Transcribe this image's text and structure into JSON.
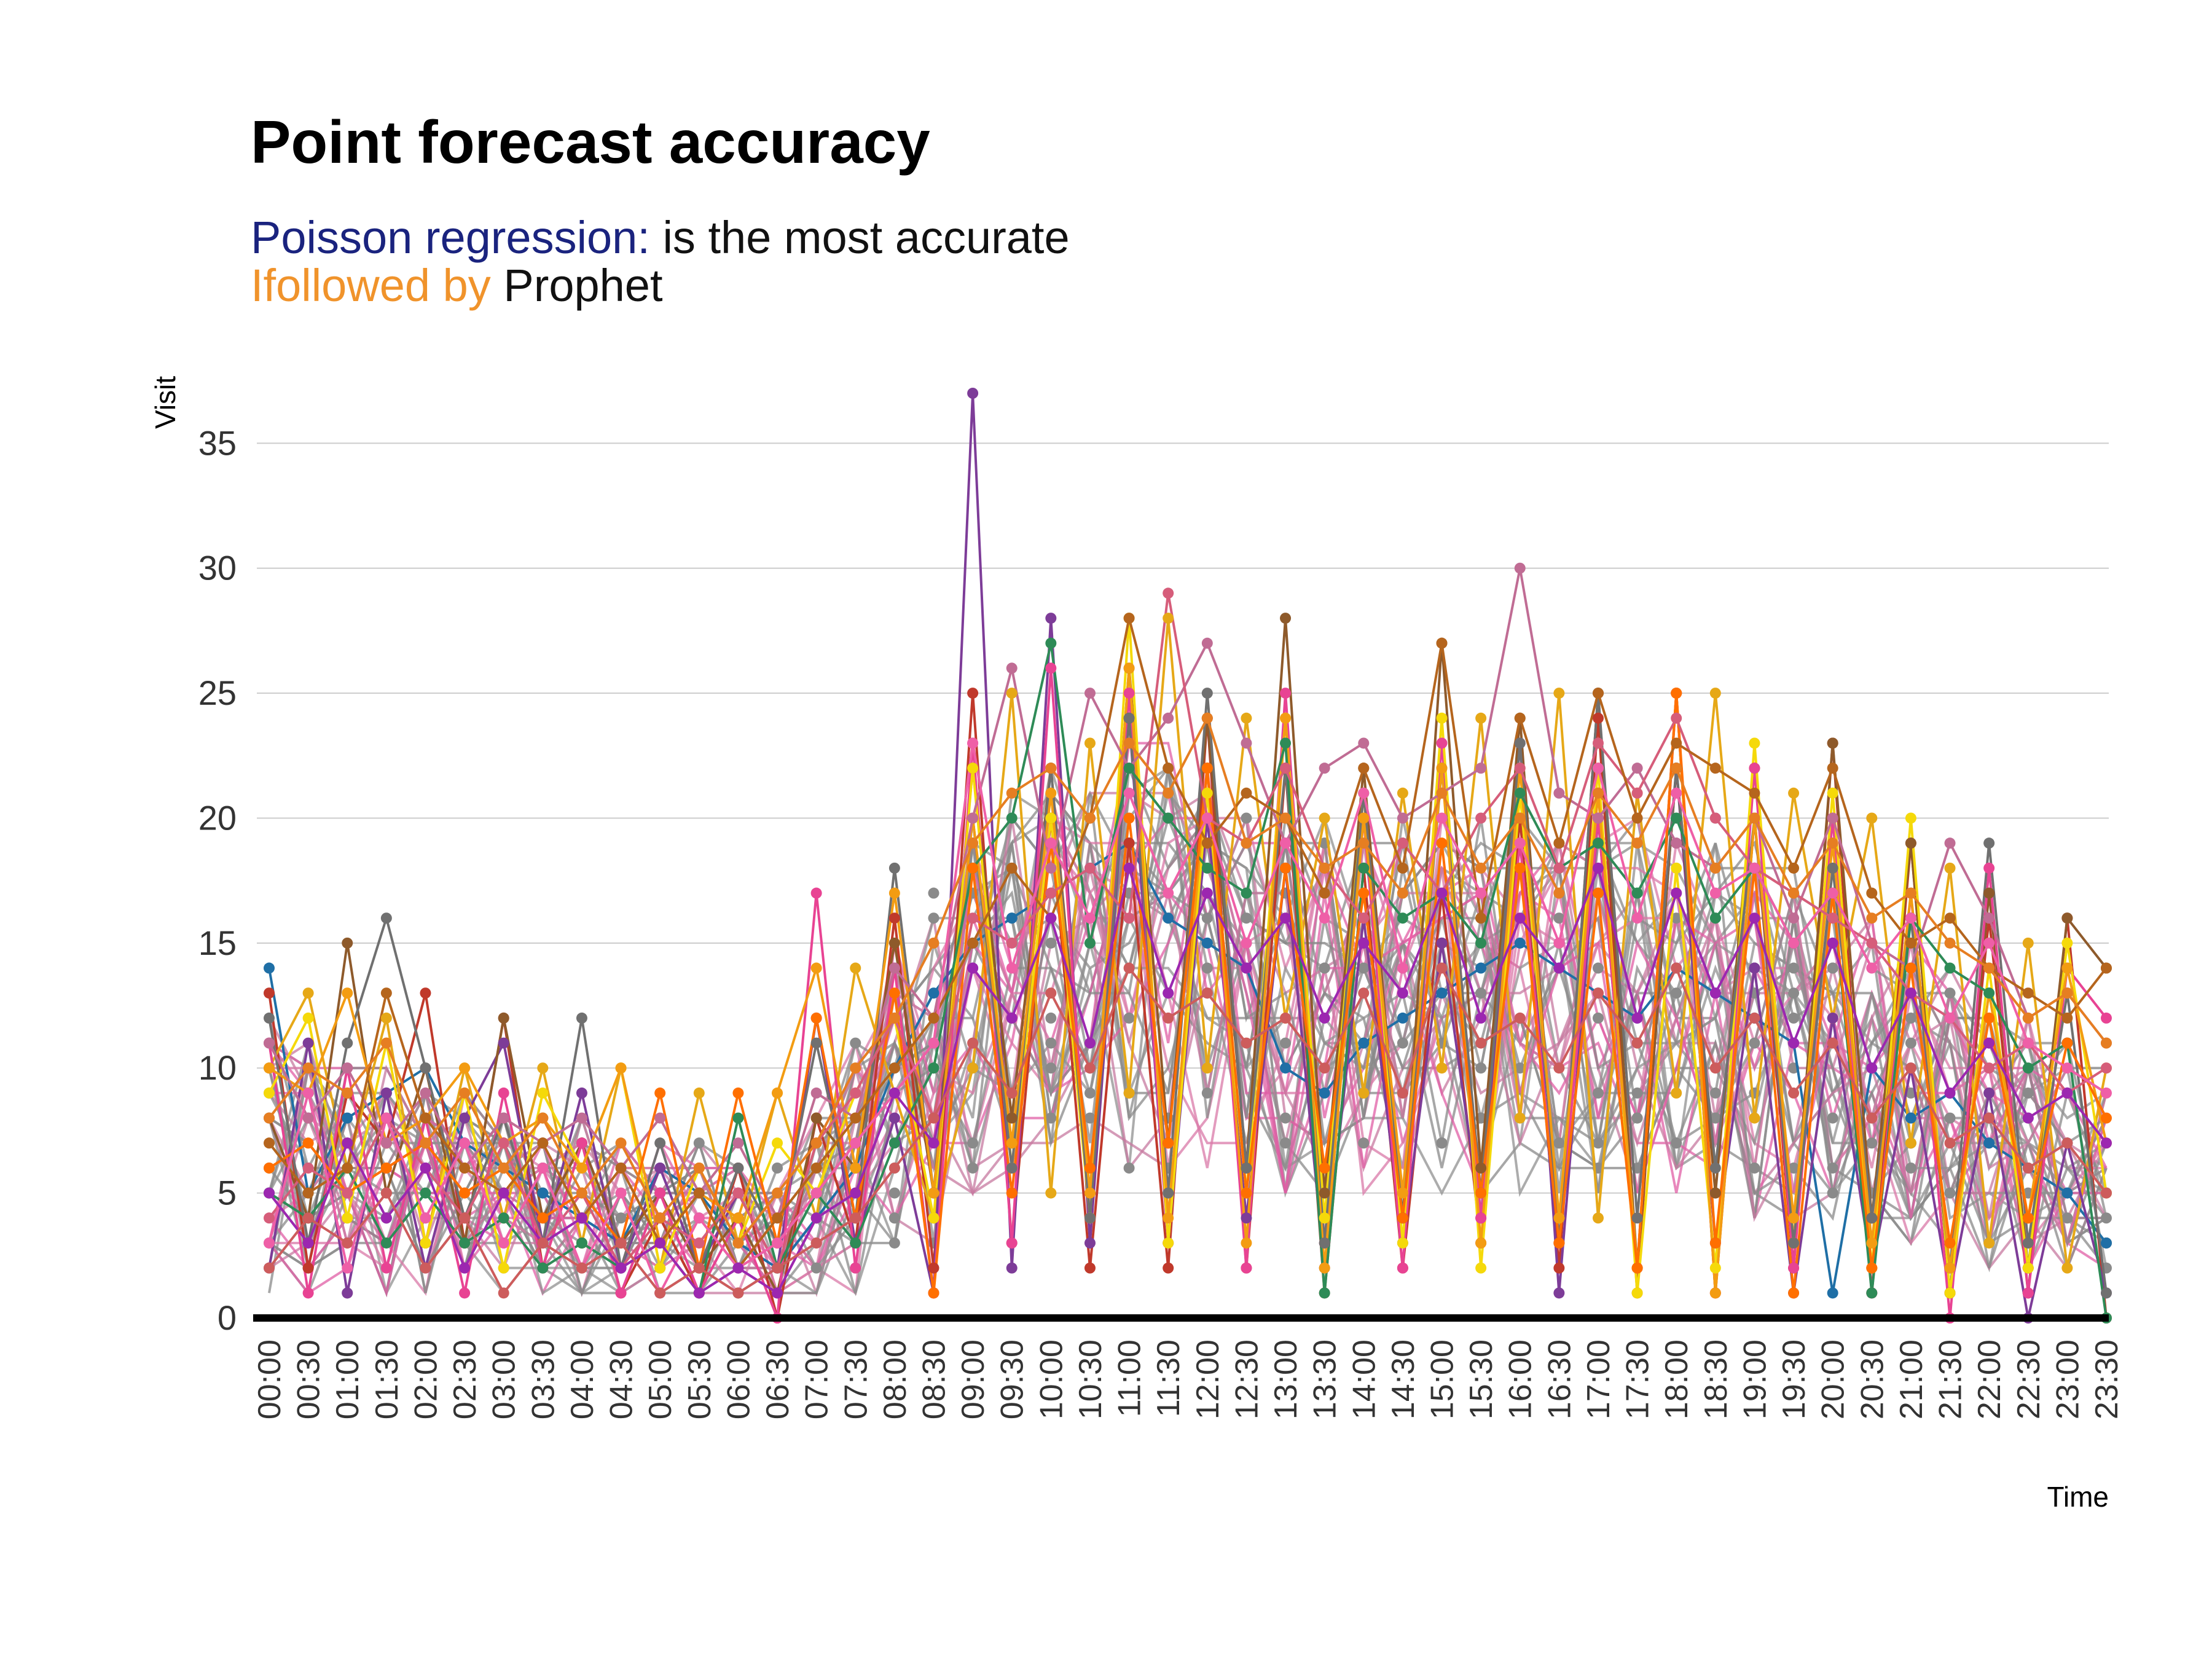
{
  "chart_data": {
    "type": "line",
    "title": "Point forecast accuracy",
    "subtitle": {
      "line1": [
        {
          "text": "Poisson regression:",
          "color": "#1a237e"
        },
        {
          "text": " is the most accurate",
          "color": "#111111"
        }
      ],
      "line2": [
        {
          "text": "Ifollowed by",
          "color": "#f0932b"
        },
        {
          "text": " Prophet",
          "color": "#111111"
        }
      ]
    },
    "xlabel": "Time",
    "ylabel": "Visit",
    "ylim": [
      0,
      37
    ],
    "yticks": [
      0,
      5,
      10,
      15,
      20,
      25,
      30,
      35
    ],
    "grid": "horizontal",
    "legend": "none",
    "categories": [
      "00:00",
      "00:30",
      "01:00",
      "01:30",
      "02:00",
      "02:30",
      "03:00",
      "03:30",
      "04:00",
      "04:30",
      "05:00",
      "05:30",
      "06:00",
      "06:30",
      "07:00",
      "07:30",
      "08:00",
      "08:30",
      "09:00",
      "09:30",
      "10:00",
      "10:30",
      "11:00",
      "11:30",
      "12:00",
      "12:30",
      "13:00",
      "13:30",
      "14:00",
      "14:30",
      "15:00",
      "15:30",
      "16:00",
      "16:30",
      "17:00",
      "17:30",
      "18:00",
      "18:30",
      "19:00",
      "19:30",
      "20:00",
      "20:30",
      "21:00",
      "21:30",
      "22:00",
      "22:30",
      "23:00",
      "23:30"
    ],
    "series": [
      {
        "color": "#1f6fa6",
        "values": [
          14,
          5,
          8,
          9,
          10,
          7,
          6,
          5,
          4,
          3,
          6,
          5,
          3,
          2,
          4,
          6,
          10,
          13,
          15,
          16,
          17,
          18,
          19,
          16,
          15,
          14,
          10,
          9,
          11,
          12,
          13,
          14,
          15,
          14,
          13,
          12,
          14,
          13,
          12,
          11,
          1,
          10,
          8,
          9,
          7,
          6,
          5,
          3
        ]
      },
      {
        "color": "#c0392b",
        "values": [
          13,
          2,
          9,
          7,
          13,
          3,
          12,
          2,
          7,
          1,
          4,
          1,
          6,
          0,
          8,
          3,
          16,
          2,
          25,
          3,
          20,
          2,
          19,
          2,
          24,
          2,
          22,
          1,
          18,
          2,
          17,
          3,
          20,
          2,
          24,
          1,
          25,
          1,
          20,
          2,
          23,
          1,
          19,
          1,
          16,
          1,
          16,
          0
        ]
      },
      {
        "color": "#e6a817",
        "values": [
          10,
          13,
          6,
          12,
          3,
          10,
          4,
          10,
          3,
          10,
          2,
          9,
          3,
          9,
          4,
          14,
          9,
          4,
          10,
          25,
          5,
          23,
          9,
          28,
          10,
          24,
          12,
          20,
          9,
          21,
          10,
          24,
          8,
          25,
          4,
          21,
          9,
          25,
          8,
          21,
          12,
          20,
          7,
          18,
          3,
          15,
          2,
          10
        ]
      },
      {
        "color": "#7d3c98",
        "values": [
          2,
          11,
          1,
          9,
          2,
          8,
          11,
          3,
          9,
          2,
          6,
          2,
          5,
          2,
          12,
          3,
          8,
          1,
          37,
          2,
          28,
          3,
          24,
          3,
          20,
          4,
          18,
          2,
          16,
          3,
          15,
          4,
          23,
          1,
          20,
          2,
          22,
          3,
          14,
          1,
          12,
          2,
          10,
          1,
          9,
          0,
          7,
          1
        ]
      },
      {
        "color": "#8e5a2b",
        "values": [
          8,
          4,
          15,
          5,
          10,
          3,
          12,
          4,
          7,
          3,
          5,
          2,
          4,
          1,
          8,
          6,
          15,
          5,
          22,
          8,
          22,
          5,
          26,
          7,
          24,
          6,
          28,
          5,
          22,
          4,
          27,
          6,
          24,
          3,
          25,
          2,
          22,
          5,
          22,
          3,
          23,
          4,
          19,
          1,
          17,
          2,
          16,
          14
        ]
      },
      {
        "color": "#e84393",
        "values": [
          11,
          1,
          10,
          2,
          8,
          1,
          9,
          2,
          7,
          1,
          5,
          1,
          4,
          0,
          17,
          2,
          14,
          1,
          23,
          3,
          26,
          4,
          25,
          3,
          22,
          2,
          25,
          3,
          20,
          2,
          23,
          4,
          19,
          3,
          20,
          2,
          25,
          1,
          22,
          2,
          20,
          1,
          17,
          0,
          18,
          1,
          14,
          12
        ]
      },
      {
        "color": "#f5d90a",
        "values": [
          9,
          12,
          4,
          11,
          3,
          9,
          2,
          9,
          6,
          10,
          2,
          6,
          3,
          7,
          5,
          9,
          12,
          4,
          22,
          6,
          20,
          4,
          28,
          3,
          21,
          5,
          24,
          4,
          21,
          3,
          24,
          2,
          21,
          4,
          22,
          1,
          18,
          2,
          23,
          3,
          21,
          2,
          20,
          1,
          14,
          2,
          15,
          5
        ]
      },
      {
        "color": "#707070",
        "values": [
          12,
          3,
          11,
          16,
          10,
          4,
          8,
          3,
          12,
          2,
          7,
          2,
          6,
          3,
          11,
          4,
          18,
          5,
          20,
          6,
          22,
          4,
          24,
          5,
          25,
          6,
          22,
          3,
          21,
          4,
          22,
          5,
          23,
          3,
          25,
          4,
          22,
          6,
          20,
          3,
          18,
          4,
          16,
          2,
          19,
          3,
          13,
          1
        ]
      },
      {
        "color": "#f39c12",
        "values": [
          10,
          9,
          13,
          7,
          8,
          10,
          7,
          8,
          6,
          10,
          3,
          5,
          4,
          9,
          14,
          6,
          17,
          5,
          20,
          7,
          21,
          5,
          26,
          4,
          22,
          3,
          24,
          2,
          20,
          5,
          22,
          3,
          22,
          4,
          21,
          2,
          25,
          1,
          20,
          4,
          19,
          3,
          17,
          2,
          13,
          4,
          14,
          7
        ]
      },
      {
        "color": "#c06c94",
        "values": [
          11,
          8,
          10,
          7,
          9,
          6,
          8,
          7,
          8,
          6,
          8,
          5,
          7,
          4,
          9,
          8,
          14,
          12,
          20,
          26,
          18,
          25,
          22,
          24,
          27,
          23,
          19,
          22,
          23,
          20,
          21,
          22,
          30,
          21,
          20,
          22,
          19,
          18,
          20,
          16,
          20,
          15,
          14,
          19,
          16,
          12,
          13,
          11
        ]
      },
      {
        "color": "#2e8b57",
        "values": [
          5,
          4,
          6,
          3,
          5,
          3,
          4,
          2,
          3,
          2,
          3,
          1,
          8,
          2,
          5,
          3,
          7,
          10,
          18,
          20,
          27,
          15,
          22,
          20,
          18,
          17,
          23,
          1,
          18,
          16,
          17,
          15,
          21,
          18,
          19,
          17,
          20,
          16,
          18,
          15,
          17,
          1,
          16,
          14,
          13,
          10,
          11,
          0
        ]
      },
      {
        "color": "#ff6f00",
        "values": [
          6,
          7,
          5,
          6,
          7,
          5,
          6,
          4,
          5,
          3,
          9,
          2,
          9,
          3,
          12,
          4,
          13,
          1,
          18,
          5,
          19,
          6,
          20,
          7,
          22,
          5,
          18,
          6,
          17,
          4,
          19,
          5,
          18,
          3,
          17,
          2,
          25,
          3,
          18,
          1,
          17,
          2,
          14,
          3,
          12,
          4,
          11,
          8
        ]
      },
      {
        "color": "#d65d7a",
        "values": [
          4,
          6,
          5,
          8,
          6,
          4,
          7,
          3,
          5,
          2,
          4,
          3,
          5,
          2,
          7,
          9,
          12,
          8,
          16,
          15,
          17,
          18,
          16,
          29,
          20,
          19,
          22,
          18,
          16,
          19,
          17,
          20,
          22,
          18,
          23,
          21,
          24,
          20,
          18,
          17,
          16,
          15,
          13,
          12,
          10,
          11,
          9,
          10
        ]
      },
      {
        "color": "#b5651d",
        "values": [
          7,
          5,
          6,
          13,
          8,
          6,
          5,
          7,
          4,
          6,
          3,
          5,
          2,
          4,
          6,
          8,
          10,
          12,
          15,
          18,
          16,
          20,
          28,
          22,
          19,
          21,
          20,
          17,
          22,
          18,
          27,
          16,
          24,
          19,
          25,
          20,
          23,
          22,
          21,
          18,
          22,
          17,
          15,
          16,
          14,
          13,
          12,
          14
        ]
      },
      {
        "color": "#ef5fa7",
        "values": [
          3,
          9,
          2,
          8,
          4,
          7,
          3,
          6,
          2,
          5,
          1,
          4,
          2,
          3,
          5,
          7,
          9,
          11,
          23,
          14,
          19,
          16,
          21,
          17,
          20,
          15,
          19,
          16,
          21,
          14,
          20,
          17,
          19,
          15,
          22,
          16,
          21,
          17,
          18,
          15,
          17,
          14,
          16,
          12,
          15,
          11,
          10,
          9
        ]
      },
      {
        "color": "#9c27b0",
        "values": [
          5,
          3,
          7,
          4,
          6,
          2,
          5,
          3,
          4,
          2,
          3,
          1,
          2,
          1,
          4,
          5,
          9,
          7,
          14,
          12,
          16,
          11,
          18,
          13,
          17,
          14,
          16,
          12,
          15,
          13,
          17,
          12,
          16,
          14,
          18,
          12,
          17,
          13,
          16,
          11,
          15,
          10,
          13,
          9,
          11,
          8,
          9,
          7
        ]
      },
      {
        "color": "#e67e22",
        "values": [
          8,
          10,
          9,
          11,
          7,
          9,
          6,
          8,
          5,
          7,
          4,
          6,
          3,
          5,
          7,
          10,
          12,
          15,
          19,
          21,
          22,
          20,
          23,
          21,
          24,
          19,
          20,
          18,
          19,
          17,
          21,
          18,
          20,
          17,
          21,
          19,
          22,
          18,
          20,
          17,
          19,
          16,
          17,
          15,
          14,
          12,
          13,
          11
        ]
      },
      {
        "color": "#cd5c5c",
        "values": [
          2,
          4,
          3,
          5,
          2,
          4,
          1,
          3,
          2,
          3,
          1,
          2,
          1,
          2,
          3,
          4,
          6,
          8,
          11,
          9,
          13,
          10,
          14,
          12,
          13,
          11,
          12,
          10,
          13,
          9,
          14,
          11,
          12,
          10,
          13,
          11,
          14,
          10,
          12,
          9,
          11,
          8,
          10,
          7,
          8,
          6,
          7,
          5
        ]
      }
    ],
    "band": {
      "color": "#8a8a8a",
      "lines": 40,
      "low": [
        1,
        1,
        1,
        1,
        1,
        1,
        1,
        1,
        1,
        1,
        1,
        1,
        1,
        1,
        1,
        1,
        2,
        3,
        5,
        5,
        6,
        6,
        6,
        6,
        6,
        6,
        5,
        5,
        5,
        5,
        5,
        5,
        5,
        5,
        5,
        5,
        5,
        5,
        4,
        4,
        4,
        4,
        3,
        3,
        2,
        2,
        2,
        2
      ],
      "high": [
        12,
        11,
        10,
        10,
        9,
        9,
        8,
        8,
        8,
        7,
        7,
        7,
        6,
        6,
        8,
        11,
        15,
        17,
        20,
        21,
        22,
        22,
        23,
        23,
        22,
        21,
        20,
        20,
        20,
        20,
        20,
        20,
        20,
        20,
        20,
        20,
        20,
        20,
        19,
        18,
        17,
        16,
        15,
        14,
        13,
        12,
        11,
        10
      ]
    }
  }
}
